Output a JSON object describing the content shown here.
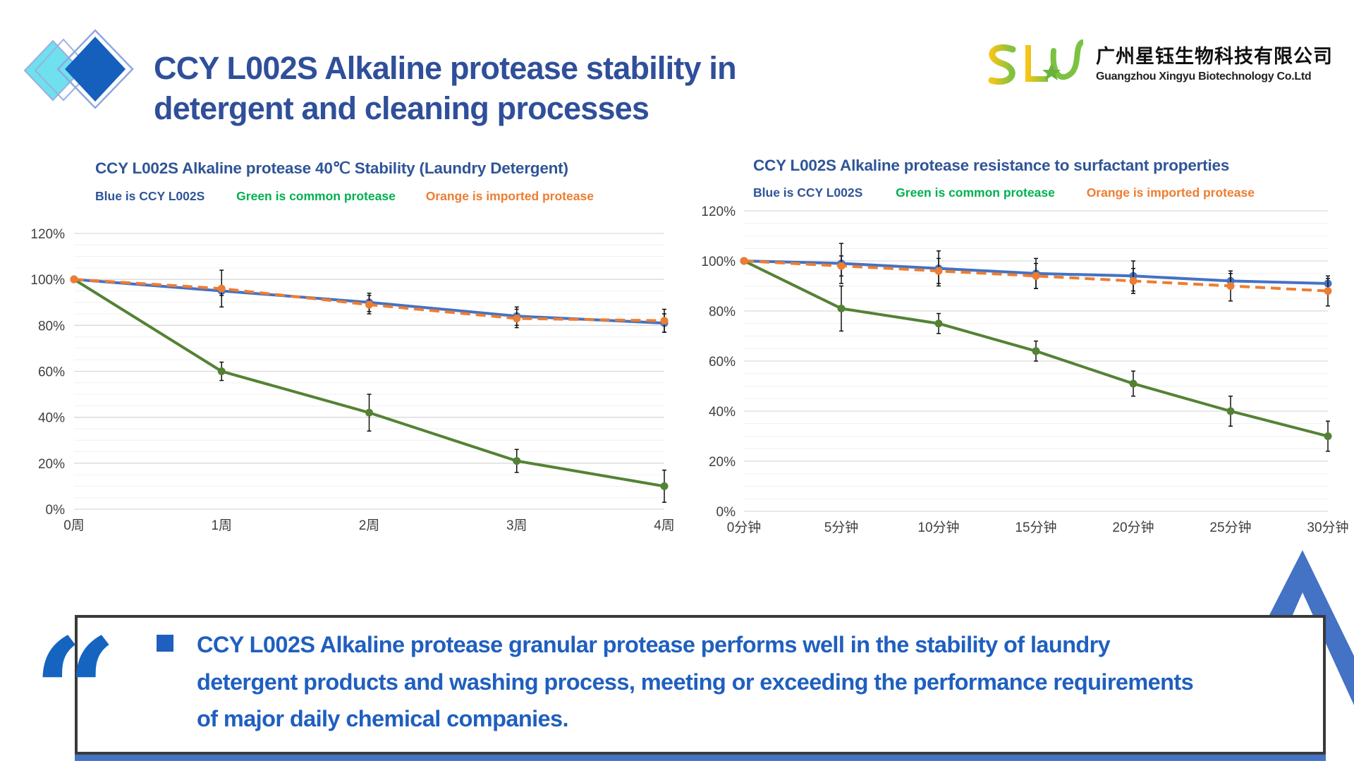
{
  "header": {
    "title_line1": "CCY L002S Alkaline protease stability in",
    "title_line2": "detergent and cleaning processes"
  },
  "logo": {
    "mark": "SLY",
    "company_cn": "广州星钰生物科技有限公司",
    "company_en": "Guangzhou Xingyu Biotechnology Co.Ltd"
  },
  "colors": {
    "blue": "#4472c4",
    "green": "#548235",
    "orange": "#ed7d31",
    "title": "#2f4f9a",
    "quote": "#1f5fbf"
  },
  "chart_data": [
    {
      "type": "line",
      "title": "CCY L002S Alkaline protease 40℃ Stability (Laundry Detergent)",
      "legend": [
        {
          "label": "Blue is CCY L002S",
          "color": "#2f5597"
        },
        {
          "label": "Green is common protease",
          "color": "#00b050"
        },
        {
          "label": "Orange is imported protease",
          "color": "#ed7d31"
        }
      ],
      "legend_position": "top",
      "categories": [
        "0周",
        "1周",
        "2周",
        "3周",
        "4周"
      ],
      "ylim": [
        0,
        120
      ],
      "yticks": [
        "0%",
        "20%",
        "40%",
        "60%",
        "80%",
        "100%",
        "120%"
      ],
      "grid": true,
      "series": [
        {
          "name": "CCY L002S",
          "color": "#4472c4",
          "dashed": false,
          "values": [
            100,
            95,
            90,
            84,
            81
          ],
          "error": [
            0,
            2,
            4,
            4,
            4
          ]
        },
        {
          "name": "common protease",
          "color": "#548235",
          "dashed": false,
          "values": [
            100,
            60,
            42,
            21,
            10
          ],
          "error": [
            0,
            4,
            8,
            5,
            7
          ]
        },
        {
          "name": "imported protease",
          "color": "#ed7d31",
          "dashed": true,
          "values": [
            100,
            96,
            89,
            83,
            82
          ],
          "error": [
            0,
            8,
            4,
            4,
            5
          ]
        }
      ]
    },
    {
      "type": "line",
      "title": "CCY L002S Alkaline protease resistance to surfactant properties",
      "legend": [
        {
          "label": "Blue is CCY L002S",
          "color": "#2f5597"
        },
        {
          "label": "Green is common protease",
          "color": "#00b050"
        },
        {
          "label": "Orange is imported protease",
          "color": "#ed7d31"
        }
      ],
      "legend_position": "top",
      "categories": [
        "0分钟",
        "5分钟",
        "10分钟",
        "15分钟",
        "20分钟",
        "25分钟",
        "30分钟"
      ],
      "ylim": [
        0,
        120
      ],
      "yticks": [
        "0%",
        "20%",
        "40%",
        "60%",
        "80%",
        "100%",
        "120%"
      ],
      "grid": true,
      "series": [
        {
          "name": "CCY L002S",
          "color": "#4472c4",
          "dashed": false,
          "values": [
            100,
            99,
            97,
            95,
            94,
            92,
            91
          ],
          "error": [
            0,
            8,
            7,
            6,
            6,
            3,
            2
          ]
        },
        {
          "name": "common protease",
          "color": "#548235",
          "dashed": false,
          "values": [
            100,
            81,
            75,
            64,
            51,
            40,
            30
          ],
          "error": [
            0,
            9,
            4,
            4,
            5,
            6,
            6
          ]
        },
        {
          "name": "imported protease",
          "color": "#ed7d31",
          "dashed": true,
          "values": [
            100,
            98,
            96,
            94,
            92,
            90,
            88
          ],
          "error": [
            0,
            4,
            5,
            5,
            5,
            6,
            6
          ]
        }
      ]
    }
  ],
  "quote": {
    "line1": "CCY L002S Alkaline protease granular protease performs well in the stability of laundry",
    "line2": "detergent products and washing process, meeting or exceeding the performance requirements",
    "line3": "of major daily chemical companies."
  }
}
